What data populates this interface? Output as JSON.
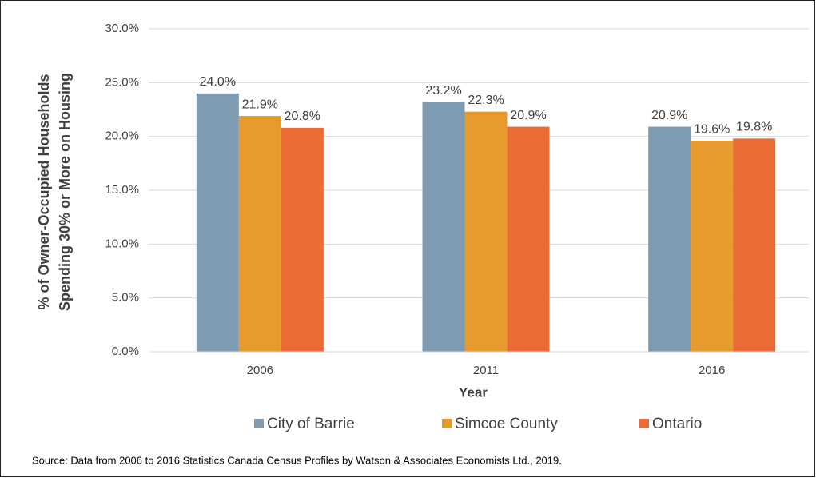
{
  "chart_data": {
    "type": "bar",
    "y_label": [
      "% of Owner-Occupied Households",
      "Spending 30% or More on Housing"
    ],
    "x_label": "Year",
    "categories": [
      "2006",
      "2011",
      "2016"
    ],
    "series": [
      {
        "name": "City of Barrie",
        "color": "#7f9bb1",
        "values": [
          24.0,
          23.2,
          20.9
        ],
        "value_labels": [
          "24.0%",
          "23.2%",
          "20.9%"
        ]
      },
      {
        "name": "Simcoe County",
        "color": "#e79a2e",
        "values": [
          21.9,
          22.3,
          19.6
        ],
        "value_labels": [
          "21.9%",
          "22.3%",
          "19.6%"
        ]
      },
      {
        "name": "Ontario",
        "color": "#eb6b37",
        "values": [
          20.8,
          20.9,
          19.8
        ],
        "value_labels": [
          "20.8%",
          "20.9%",
          "19.8%"
        ]
      }
    ],
    "ylim": [
      0,
      30
    ],
    "yticks": [
      {
        "value": 0,
        "label": "0.0%"
      },
      {
        "value": 5,
        "label": "5.0%"
      },
      {
        "value": 10,
        "label": "10.0%"
      },
      {
        "value": 15,
        "label": "15.0%"
      },
      {
        "value": 20,
        "label": "20.0%"
      },
      {
        "value": 25,
        "label": "25.0%"
      },
      {
        "value": 30,
        "label": "30.0%"
      }
    ],
    "grid": true,
    "legend": "bottom",
    "source": "Source:  Data from 2006 to 2016 Statistics Canada Census Profiles by Watson & Associates Economists Ltd., 2019."
  }
}
